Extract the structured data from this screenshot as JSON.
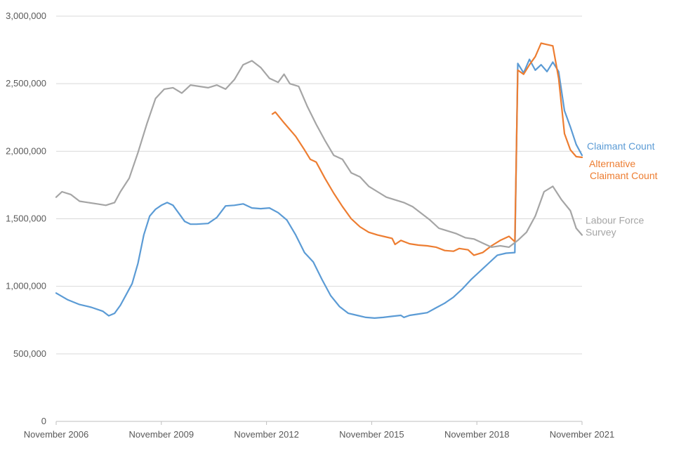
{
  "chart_data": {
    "type": "line",
    "title": "",
    "xlabel": "",
    "ylabel": "",
    "ylim": [
      0,
      3000000
    ],
    "yticks": [
      {
        "value": 0,
        "label": "0"
      },
      {
        "value": 500000,
        "label": "500,000"
      },
      {
        "value": 1000000,
        "label": "1,000,000"
      },
      {
        "value": 1500000,
        "label": "1,500,000"
      },
      {
        "value": 2000000,
        "label": "2,000,000"
      },
      {
        "value": 2500000,
        "label": "2,500,000"
      },
      {
        "value": 3000000,
        "label": "3,000,000"
      }
    ],
    "xlim": [
      "2006-11",
      "2021-11"
    ],
    "xticks": [
      {
        "date": "2006-11",
        "label": "November 2006"
      },
      {
        "date": "2009-11",
        "label": "November 2009"
      },
      {
        "date": "2012-11",
        "label": "November 2012"
      },
      {
        "date": "2015-11",
        "label": "November 2015"
      },
      {
        "date": "2018-11",
        "label": "November 2018"
      },
      {
        "date": "2021-11",
        "label": "November 2021"
      }
    ],
    "grid": true,
    "legend": "direct labels at right end of lines",
    "series": [
      {
        "name": "Claimant Count",
        "label_lines": [
          "Claimant Count"
        ],
        "color": "#5b9bd5",
        "points": [
          [
            "2006-11",
            950000
          ],
          [
            "2007-03",
            900000
          ],
          [
            "2007-07",
            865000
          ],
          [
            "2007-11",
            845000
          ],
          [
            "2008-03",
            815000
          ],
          [
            "2008-05",
            782000
          ],
          [
            "2008-07",
            800000
          ],
          [
            "2008-09",
            860000
          ],
          [
            "2008-11",
            940000
          ],
          [
            "2009-01",
            1020000
          ],
          [
            "2009-03",
            1170000
          ],
          [
            "2009-05",
            1380000
          ],
          [
            "2009-07",
            1520000
          ],
          [
            "2009-09",
            1570000
          ],
          [
            "2009-11",
            1600000
          ],
          [
            "2010-01",
            1620000
          ],
          [
            "2010-03",
            1600000
          ],
          [
            "2010-05",
            1540000
          ],
          [
            "2010-07",
            1480000
          ],
          [
            "2010-09",
            1460000
          ],
          [
            "2010-11",
            1460000
          ],
          [
            "2011-03",
            1465000
          ],
          [
            "2011-06",
            1510000
          ],
          [
            "2011-09",
            1595000
          ],
          [
            "2011-12",
            1600000
          ],
          [
            "2012-03",
            1610000
          ],
          [
            "2012-06",
            1580000
          ],
          [
            "2012-09",
            1575000
          ],
          [
            "2012-12",
            1580000
          ],
          [
            "2013-03",
            1545000
          ],
          [
            "2013-06",
            1490000
          ],
          [
            "2013-09",
            1380000
          ],
          [
            "2013-12",
            1250000
          ],
          [
            "2014-03",
            1180000
          ],
          [
            "2014-06",
            1050000
          ],
          [
            "2014-09",
            930000
          ],
          [
            "2014-12",
            850000
          ],
          [
            "2015-03",
            800000
          ],
          [
            "2015-06",
            785000
          ],
          [
            "2015-09",
            770000
          ],
          [
            "2015-12",
            765000
          ],
          [
            "2016-03",
            770000
          ],
          [
            "2016-06",
            778000
          ],
          [
            "2016-09",
            785000
          ],
          [
            "2016-10",
            770000
          ],
          [
            "2016-12",
            785000
          ],
          [
            "2017-03",
            795000
          ],
          [
            "2017-06",
            805000
          ],
          [
            "2017-09",
            840000
          ],
          [
            "2017-12",
            875000
          ],
          [
            "2018-03",
            920000
          ],
          [
            "2018-06",
            980000
          ],
          [
            "2018-09",
            1050000
          ],
          [
            "2018-12",
            1110000
          ],
          [
            "2019-03",
            1170000
          ],
          [
            "2019-06",
            1230000
          ],
          [
            "2019-09",
            1245000
          ],
          [
            "2019-12",
            1250000
          ],
          [
            "2020-01",
            2650000
          ],
          [
            "2020-03",
            2580000
          ],
          [
            "2020-05",
            2680000
          ],
          [
            "2020-07",
            2600000
          ],
          [
            "2020-09",
            2640000
          ],
          [
            "2020-11",
            2590000
          ],
          [
            "2021-01",
            2660000
          ],
          [
            "2021-03",
            2590000
          ],
          [
            "2021-05",
            2300000
          ],
          [
            "2021-07",
            2180000
          ],
          [
            "2021-09",
            2050000
          ],
          [
            "2021-11",
            1970000
          ]
        ]
      },
      {
        "name": "Alternative Claimant Count",
        "label_lines": [
          "Alternative",
          "Claimant Count"
        ],
        "color": "#ed7d31",
        "points": [
          [
            "2013-01",
            2275000
          ],
          [
            "2013-02",
            2290000
          ],
          [
            "2013-05",
            2210000
          ],
          [
            "2013-09",
            2110000
          ],
          [
            "2013-12",
            2010000
          ],
          [
            "2014-02",
            1940000
          ],
          [
            "2014-04",
            1920000
          ],
          [
            "2014-07",
            1800000
          ],
          [
            "2014-10",
            1690000
          ],
          [
            "2015-01",
            1590000
          ],
          [
            "2015-04",
            1500000
          ],
          [
            "2015-07",
            1440000
          ],
          [
            "2015-10",
            1400000
          ],
          [
            "2016-01",
            1380000
          ],
          [
            "2016-04",
            1365000
          ],
          [
            "2016-06",
            1355000
          ],
          [
            "2016-07",
            1310000
          ],
          [
            "2016-09",
            1340000
          ],
          [
            "2016-12",
            1315000
          ],
          [
            "2017-03",
            1305000
          ],
          [
            "2017-06",
            1300000
          ],
          [
            "2017-09",
            1290000
          ],
          [
            "2017-12",
            1265000
          ],
          [
            "2018-03",
            1260000
          ],
          [
            "2018-05",
            1280000
          ],
          [
            "2018-08",
            1270000
          ],
          [
            "2018-10",
            1230000
          ],
          [
            "2019-01",
            1250000
          ],
          [
            "2019-04",
            1300000
          ],
          [
            "2019-07",
            1340000
          ],
          [
            "2019-10",
            1370000
          ],
          [
            "2019-12",
            1330000
          ],
          [
            "2020-01",
            2600000
          ],
          [
            "2020-03",
            2570000
          ],
          [
            "2020-05",
            2640000
          ],
          [
            "2020-07",
            2700000
          ],
          [
            "2020-09",
            2800000
          ],
          [
            "2020-11",
            2790000
          ],
          [
            "2021-01",
            2780000
          ],
          [
            "2021-03",
            2540000
          ],
          [
            "2021-05",
            2130000
          ],
          [
            "2021-07",
            2010000
          ],
          [
            "2021-09",
            1960000
          ],
          [
            "2021-11",
            1955000
          ]
        ]
      },
      {
        "name": "Labour Force Survey",
        "label_lines": [
          "Labour Force",
          "Survey"
        ],
        "color": "#a5a5a5",
        "points": [
          [
            "2006-11",
            1660000
          ],
          [
            "2007-01",
            1700000
          ],
          [
            "2007-04",
            1680000
          ],
          [
            "2007-07",
            1630000
          ],
          [
            "2007-10",
            1620000
          ],
          [
            "2008-01",
            1610000
          ],
          [
            "2008-04",
            1600000
          ],
          [
            "2008-07",
            1620000
          ],
          [
            "2008-09",
            1700000
          ],
          [
            "2008-12",
            1800000
          ],
          [
            "2009-03",
            1990000
          ],
          [
            "2009-06",
            2200000
          ],
          [
            "2009-09",
            2390000
          ],
          [
            "2009-12",
            2460000
          ],
          [
            "2010-03",
            2470000
          ],
          [
            "2010-06",
            2430000
          ],
          [
            "2010-09",
            2490000
          ],
          [
            "2010-12",
            2480000
          ],
          [
            "2011-03",
            2470000
          ],
          [
            "2011-06",
            2490000
          ],
          [
            "2011-09",
            2460000
          ],
          [
            "2011-12",
            2530000
          ],
          [
            "2012-03",
            2640000
          ],
          [
            "2012-06",
            2670000
          ],
          [
            "2012-09",
            2620000
          ],
          [
            "2012-12",
            2540000
          ],
          [
            "2013-03",
            2510000
          ],
          [
            "2013-05",
            2570000
          ],
          [
            "2013-07",
            2500000
          ],
          [
            "2013-10",
            2480000
          ],
          [
            "2014-01",
            2330000
          ],
          [
            "2014-04",
            2200000
          ],
          [
            "2014-07",
            2080000
          ],
          [
            "2014-10",
            1970000
          ],
          [
            "2015-01",
            1940000
          ],
          [
            "2015-04",
            1840000
          ],
          [
            "2015-07",
            1810000
          ],
          [
            "2015-10",
            1740000
          ],
          [
            "2016-01",
            1700000
          ],
          [
            "2016-04",
            1660000
          ],
          [
            "2016-07",
            1640000
          ],
          [
            "2016-10",
            1620000
          ],
          [
            "2017-01",
            1590000
          ],
          [
            "2017-04",
            1540000
          ],
          [
            "2017-07",
            1490000
          ],
          [
            "2017-10",
            1430000
          ],
          [
            "2018-01",
            1410000
          ],
          [
            "2018-04",
            1390000
          ],
          [
            "2018-07",
            1360000
          ],
          [
            "2018-10",
            1350000
          ],
          [
            "2019-01",
            1320000
          ],
          [
            "2019-04",
            1290000
          ],
          [
            "2019-07",
            1300000
          ],
          [
            "2019-10",
            1290000
          ],
          [
            "2020-01",
            1340000
          ],
          [
            "2020-04",
            1400000
          ],
          [
            "2020-07",
            1520000
          ],
          [
            "2020-10",
            1700000
          ],
          [
            "2021-01",
            1740000
          ],
          [
            "2021-04",
            1640000
          ],
          [
            "2021-07",
            1560000
          ],
          [
            "2021-09",
            1430000
          ],
          [
            "2021-11",
            1380000
          ]
        ]
      }
    ]
  }
}
